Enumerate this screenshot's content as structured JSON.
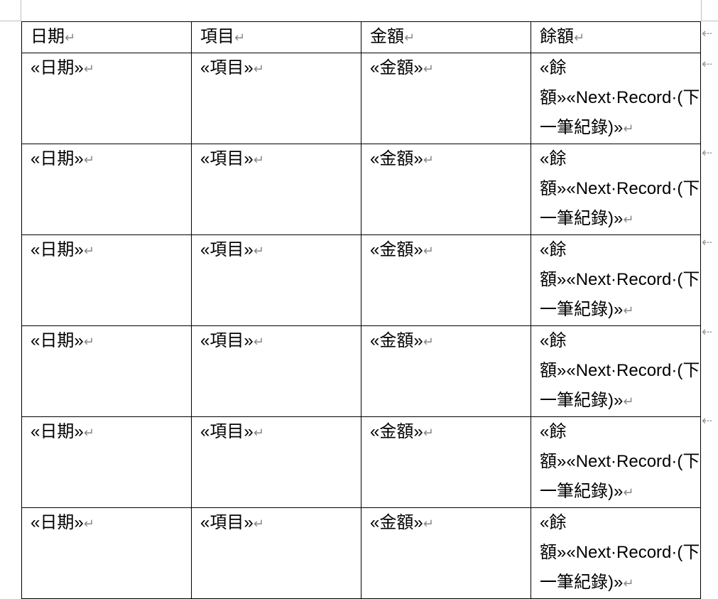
{
  "table": {
    "headers": [
      "日期",
      "項目",
      "金額",
      "餘額"
    ],
    "record_fields": [
      "«日期»",
      "«項目»",
      "«金額»",
      "«餘額»«Next·Record·(下一筆紀錄)»"
    ],
    "visible_records": 6
  },
  "paragraph_mark": "↵",
  "row_end_mark": "⇠"
}
